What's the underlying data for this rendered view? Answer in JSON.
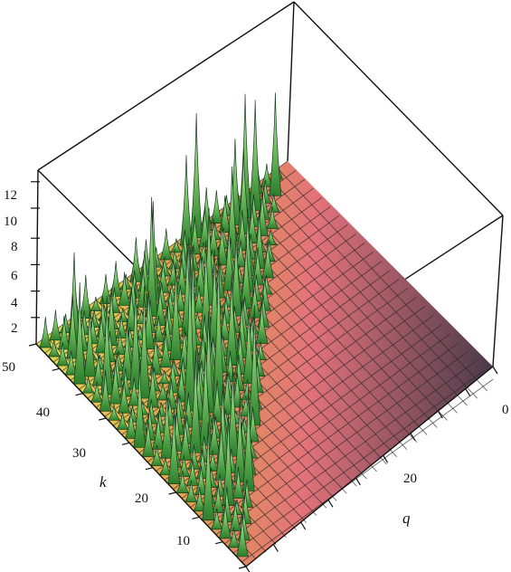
{
  "chart_data": {
    "type": "surface3d",
    "title": "",
    "axes": {
      "x": {
        "label": "q",
        "range": [
          0,
          50
        ],
        "tick_labels": [
          "0",
          "20"
        ]
      },
      "y": {
        "label": "k",
        "range": [
          1,
          50
        ],
        "tick_labels": [
          "50",
          "40",
          "30",
          "20",
          "10"
        ]
      },
      "z": {
        "label": "",
        "range": [
          0,
          13
        ],
        "tick_labels": [
          "12",
          "10",
          "8",
          "6",
          "4",
          "2"
        ]
      }
    },
    "surface_description_values": {
      "base_level": 0,
      "max_peak": 13,
      "region_with_peaks": "q < k",
      "region_flat": "q > k"
    },
    "colormap": [
      "#2f8a2f",
      "#7dc36b",
      "#d7e06a",
      "#e2a24c",
      "#e06a6a",
      "#c45a7a",
      "#4a3d4f"
    ],
    "grid": true
  }
}
